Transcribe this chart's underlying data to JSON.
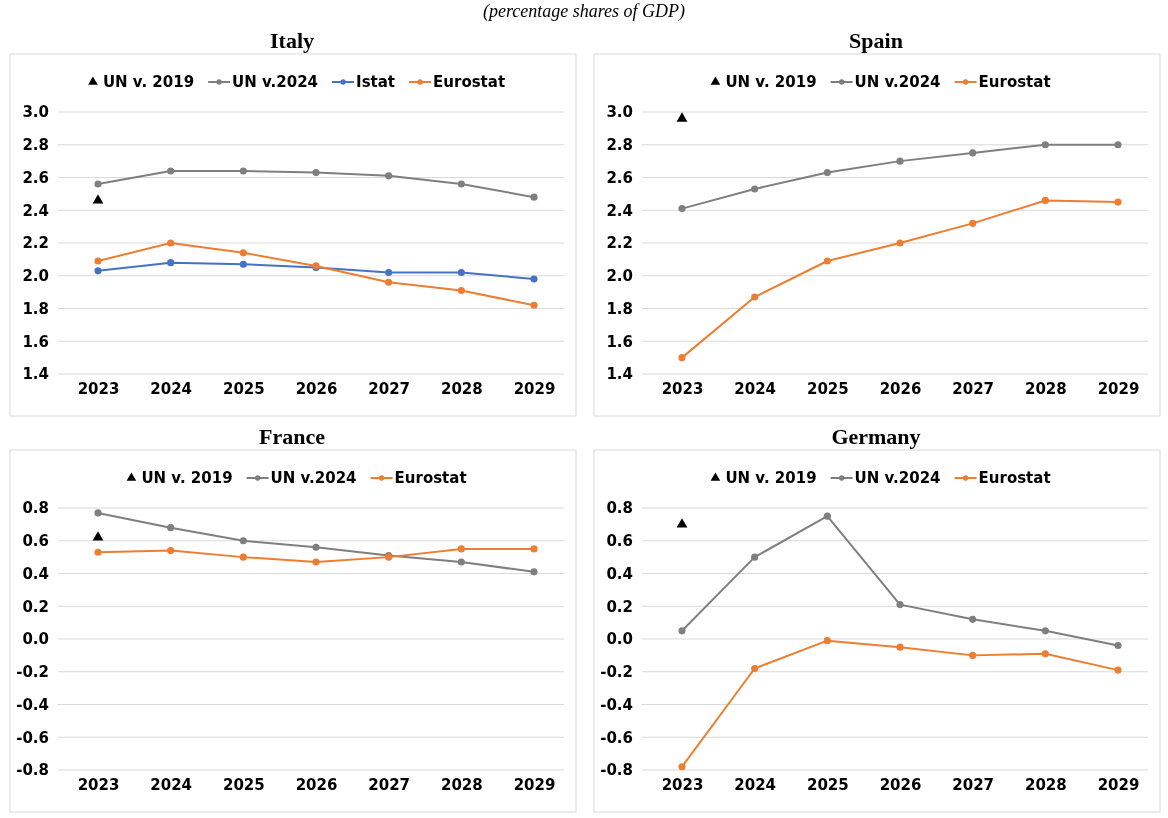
{
  "chart_data": [
    {
      "type": "line",
      "title": "Italy",
      "subtitle": "(percentage shares of GDP)",
      "categories": [
        "2023",
        "2024",
        "2025",
        "2026",
        "2027",
        "2028",
        "2029"
      ],
      "ylim": [
        1.4,
        3.0
      ],
      "yticks": [
        1.4,
        1.6,
        1.8,
        {
          "value": 2,
          "label": "2.0"
        },
        2.2,
        2.4,
        2.6,
        2.8,
        {
          "value": 3,
          "label": "3.0"
        }
      ],
      "grid": "y",
      "legend": "top",
      "marker": "circle",
      "series": [
        {
          "name": "UN v. 2019",
          "type": "scatter",
          "marker": "triangle",
          "color": "#000000",
          "values": [
            2.46,
            null,
            null,
            null,
            null,
            null,
            null
          ]
        },
        {
          "name": "UN v.2024",
          "color": "#7f7f7f",
          "values": [
            2.56,
            2.64,
            2.64,
            2.63,
            2.61,
            2.56,
            2.48
          ]
        },
        {
          "name": "Istat",
          "color": "#4472c4",
          "values": [
            2.03,
            2.08,
            2.07,
            2.05,
            2.02,
            2.02,
            1.98
          ]
        },
        {
          "name": "Eurostat",
          "color": "#ed7d31",
          "values": [
            2.09,
            2.2,
            2.14,
            2.06,
            1.96,
            1.91,
            1.82
          ]
        }
      ]
    },
    {
      "type": "line",
      "title": "Spain",
      "categories": [
        "2023",
        "2024",
        "2025",
        "2026",
        "2027",
        "2028",
        "2029"
      ],
      "ylim": [
        1.4,
        3.0
      ],
      "yticks": [
        1.4,
        1.6,
        1.8,
        {
          "value": 2,
          "label": "2.0"
        },
        2.2,
        2.4,
        2.6,
        2.8,
        {
          "value": 3,
          "label": "3.0"
        }
      ],
      "grid": "y",
      "legend": "top",
      "marker": "circle",
      "series": [
        {
          "name": "UN v. 2019",
          "type": "scatter",
          "marker": "triangle",
          "color": "#000000",
          "values": [
            2.96,
            null,
            null,
            null,
            null,
            null,
            null
          ]
        },
        {
          "name": "UN v.2024",
          "color": "#7f7f7f",
          "values": [
            2.41,
            2.53,
            2.63,
            2.7,
            2.75,
            2.8,
            2.8
          ]
        },
        {
          "name": "Eurostat",
          "color": "#ed7d31",
          "values": [
            1.5,
            1.87,
            2.09,
            2.2,
            2.32,
            2.46,
            2.45
          ]
        }
      ]
    },
    {
      "type": "line",
      "title": "France",
      "categories": [
        "2023",
        "2024",
        "2025",
        "2026",
        "2027",
        "2028",
        "2029"
      ],
      "ylim": [
        -0.8,
        0.8
      ],
      "yticks": [
        {
          "value": -0.8,
          "label": "-0.8"
        },
        {
          "value": -0.6,
          "label": "-0.6"
        },
        {
          "value": -0.4,
          "label": "-0.4"
        },
        {
          "value": -0.2,
          "label": "-0.2"
        },
        {
          "value": 0,
          "label": "0.0"
        },
        0.2,
        0.4,
        0.6,
        0.8
      ],
      "grid": "y",
      "legend": "top",
      "marker": "circle",
      "series": [
        {
          "name": "UN v. 2019",
          "type": "scatter",
          "marker": "triangle",
          "color": "#000000",
          "values": [
            0.62,
            null,
            null,
            null,
            null,
            null,
            null
          ]
        },
        {
          "name": "UN v.2024",
          "color": "#7f7f7f",
          "values": [
            0.77,
            0.68,
            0.6,
            0.56,
            0.51,
            0.47,
            0.41
          ]
        },
        {
          "name": "Eurostat",
          "color": "#ed7d31",
          "values": [
            0.53,
            0.54,
            0.5,
            0.47,
            0.5,
            0.55,
            0.55
          ]
        }
      ]
    },
    {
      "type": "line",
      "title": "Germany",
      "categories": [
        "2023",
        "2024",
        "2025",
        "2026",
        "2027",
        "2028",
        "2029"
      ],
      "ylim": [
        -0.8,
        0.8
      ],
      "yticks": [
        {
          "value": -0.8,
          "label": "-0.8"
        },
        {
          "value": -0.6,
          "label": "-0.6"
        },
        {
          "value": -0.4,
          "label": "-0.4"
        },
        {
          "value": -0.2,
          "label": "-0.2"
        },
        {
          "value": 0,
          "label": "0.0"
        },
        0.2,
        0.4,
        0.6,
        0.8
      ],
      "grid": "y",
      "legend": "top",
      "marker": "circle",
      "series": [
        {
          "name": "UN v. 2019",
          "type": "scatter",
          "marker": "triangle",
          "color": "#000000",
          "values": [
            0.7,
            null,
            null,
            null,
            null,
            null,
            null
          ]
        },
        {
          "name": "UN v.2024",
          "color": "#7f7f7f",
          "values": [
            0.05,
            0.5,
            0.75,
            0.21,
            0.12,
            0.05,
            -0.04
          ]
        },
        {
          "name": "Eurostat",
          "color": "#ed7d31",
          "values": [
            -0.78,
            -0.18,
            -0.01,
            -0.05,
            -0.1,
            -0.09,
            -0.19
          ]
        }
      ]
    }
  ]
}
